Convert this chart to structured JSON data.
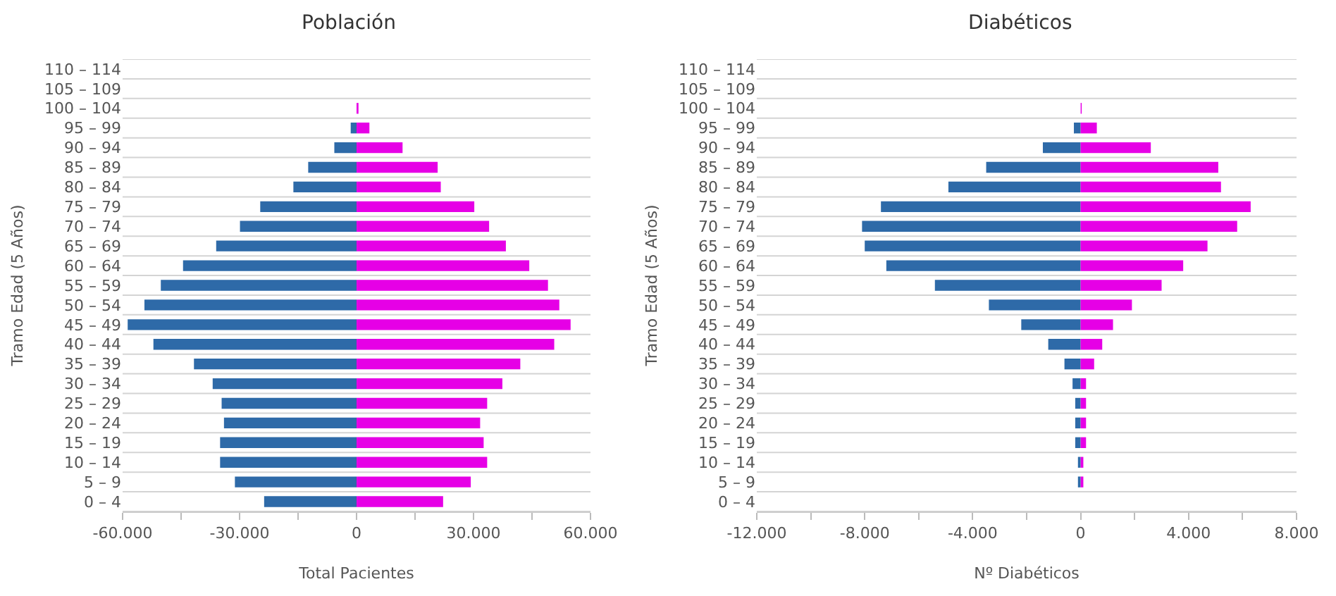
{
  "chart_data": [
    {
      "type": "bar",
      "title": "Población",
      "xlabel": "Total Pacientes",
      "ylabel": "Tramo Edad (5 Años)",
      "orientation": "horizontal",
      "stacked": true,
      "grid": "y",
      "categories": [
        "110 – 114",
        "105 – 109",
        "100 – 104",
        "95 – 99",
        "90 – 94",
        "85 – 89",
        "80 – 84",
        "75 – 79",
        "70 – 74",
        "65 – 69",
        "60 – 64",
        "55 – 59",
        "50 – 54",
        "45 – 49",
        "40 – 44",
        "35 – 39",
        "30 – 34",
        "25 – 29",
        "20 – 24",
        "15 – 19",
        "10 – 14",
        "5 – 9",
        "0 – 4"
      ],
      "series": [
        {
          "color": "#2e6aa8",
          "values": [
            0,
            0,
            0,
            -1500,
            -5700,
            -12400,
            -16200,
            -24700,
            -29900,
            -36000,
            -44500,
            -50200,
            -54400,
            -58700,
            -52100,
            -41700,
            -36900,
            -34600,
            -34000,
            -35000,
            -35000,
            -31200,
            -23700
          ]
        },
        {
          "color": "#e600e6",
          "values": [
            0,
            0,
            500,
            3300,
            11800,
            20800,
            21600,
            30200,
            34000,
            38300,
            44300,
            49100,
            52000,
            54900,
            50700,
            42000,
            37400,
            33500,
            31700,
            32600,
            33500,
            29300,
            22200
          ]
        }
      ],
      "xlim": [
        -60000,
        60000
      ],
      "xticks": [
        {
          "value": -60000,
          "label": "-60.000"
        },
        {
          "value": -45000,
          "label": null
        },
        {
          "value": -30000,
          "label": "-30.000"
        },
        {
          "value": -15000,
          "label": null
        },
        0,
        {
          "value": 15000,
          "label": null
        },
        {
          "value": 30000,
          "label": "30.000"
        },
        {
          "value": 45000,
          "label": null
        },
        {
          "value": 60000,
          "label": "60.000"
        }
      ]
    },
    {
      "type": "bar",
      "title": "Diabéticos",
      "xlabel": "Nº Diabéticos",
      "ylabel": "Tramo Edad (5 Años)",
      "orientation": "horizontal",
      "stacked": true,
      "grid": "y",
      "categories": [
        "110 – 114",
        "105 – 109",
        "100 – 104",
        "95 – 99",
        "90 – 94",
        "85 – 89",
        "80 – 84",
        "75 – 79",
        "70 – 74",
        "65 – 69",
        "60 – 64",
        "55 – 59",
        "50 – 54",
        "45 – 49",
        "40 – 44",
        "35 – 39",
        "30 – 34",
        "25 – 29",
        "20 – 24",
        "15 – 19",
        "10 – 14",
        "5 – 9",
        "0 – 4"
      ],
      "series": [
        {
          "color": "#2e6aa8",
          "values": [
            0,
            0,
            0,
            -250,
            -1400,
            -3500,
            -4900,
            -7400,
            -8100,
            -8000,
            -7200,
            -5400,
            -3400,
            -2200,
            -1200,
            -600,
            -300,
            -200,
            -200,
            -200,
            -100,
            -100,
            0
          ]
        },
        {
          "color": "#e600e6",
          "values": [
            0,
            0,
            40,
            600,
            2600,
            5100,
            5200,
            6300,
            5800,
            4700,
            3800,
            3000,
            1900,
            1200,
            800,
            500,
            200,
            200,
            200,
            200,
            100,
            100,
            0
          ]
        }
      ],
      "xlim": [
        -12000,
        8000
      ],
      "xticks": [
        {
          "value": -12000,
          "label": "-12.000"
        },
        {
          "value": -10000,
          "label": null
        },
        {
          "value": -8000,
          "label": "-8.000"
        },
        {
          "value": -6000,
          "label": null
        },
        {
          "value": -4000,
          "label": "-4.000"
        },
        {
          "value": -2000,
          "label": null
        },
        0,
        {
          "value": 2000,
          "label": null
        },
        {
          "value": 4000,
          "label": "4.000"
        },
        {
          "value": 6000,
          "label": null
        },
        {
          "value": 8000,
          "label": "8.000"
        }
      ]
    }
  ]
}
